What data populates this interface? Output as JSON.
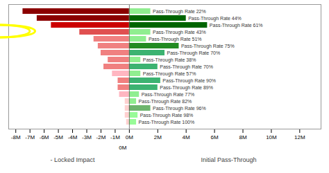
{
  "chart_data": {
    "type": "bar",
    "orientation": "horizontal",
    "categories": [
      "Pass-Through Rate 22%",
      "Pass-Through Rate 44%",
      "Pass-Through Rate 61%",
      "Pass-Through Rate 43%",
      "Pass-Through Rate 51%",
      "Pass-Through Rate 75%",
      "Pass-Through Rate 70%",
      "Pass-Through Rate 38%",
      "Pass-Through Rate 70%",
      "Pass-Through Rate 57%",
      "Pass-Through Rate 90%",
      "Pass-Through Rate 89%",
      "Pass-Through Rate 77%",
      "Pass-Through Rate 82%",
      "Pass-Through Rate 96%",
      "Pass-Through Rate 98%",
      "Pass-Through Rate 100%"
    ],
    "series": [
      {
        "values": [
          -7.5,
          -6.5,
          -5.5,
          -3.5,
          -2.5,
          -2.2,
          -2.0,
          -1.5,
          -1.8,
          -1.2,
          -0.8,
          -0.8,
          -0.7,
          -0.3,
          -0.3,
          -0.3,
          -0.2
        ],
        "colors": [
          "#8B0000",
          "#8B0000",
          "#CC0000",
          "#E05050",
          "#F08080",
          "#F08080",
          "#F08080",
          "#F08080",
          "#F08080",
          "#FFB6C1",
          "#F08080",
          "#F08080",
          "#FFB6C1",
          "#FFD0D0",
          "#FFD0D0",
          "#FFD0D0",
          "#FFD0D0"
        ]
      },
      {
        "values": [
          1.5,
          4.0,
          5.5,
          1.5,
          1.2,
          3.5,
          2.5,
          0.8,
          2.0,
          0.8,
          2.2,
          2.0,
          0.7,
          0.5,
          1.5,
          0.6,
          0.5
        ],
        "colors": [
          "#90EE90",
          "#006400",
          "#006400",
          "#90EE90",
          "#90EE90",
          "#228B22",
          "#3CB371",
          "#90EE90",
          "#3CB371",
          "#90EE90",
          "#3CB371",
          "#3CB371",
          "#90EE90",
          "#90EE90",
          "#6DB56D",
          "#98FB98",
          "#98FB98"
        ]
      }
    ],
    "xlim": [
      -8.5,
      13.5
    ],
    "xticks": [
      {
        "value": -8,
        "label": "-8M"
      },
      {
        "value": -7,
        "label": "-7M"
      },
      {
        "value": -6,
        "label": "-6M"
      },
      {
        "value": -5,
        "label": "-5M"
      },
      {
        "value": -4,
        "label": "-4M"
      },
      {
        "value": -3,
        "label": "-3M"
      },
      {
        "value": -2,
        "label": "-2M"
      },
      {
        "value": -1,
        "label": "-1M"
      },
      {
        "value": 0,
        "label": "0M"
      },
      {
        "value": 2,
        "label": "2M"
      },
      {
        "value": 4,
        "label": "4M"
      },
      {
        "value": 6,
        "label": "6M"
      },
      {
        "value": 8,
        "label": "8M"
      },
      {
        "value": 10,
        "label": "10M"
      },
      {
        "value": 12,
        "label": "12M"
      }
    ],
    "tick_labels": "x",
    "annotations": [
      {
        "text": "0M",
        "x": 0
      },
      {
        "text": "- Locked Impact",
        "x": -4
      },
      {
        "text": "Initial Pass-Through",
        "x": 7
      }
    ]
  }
}
